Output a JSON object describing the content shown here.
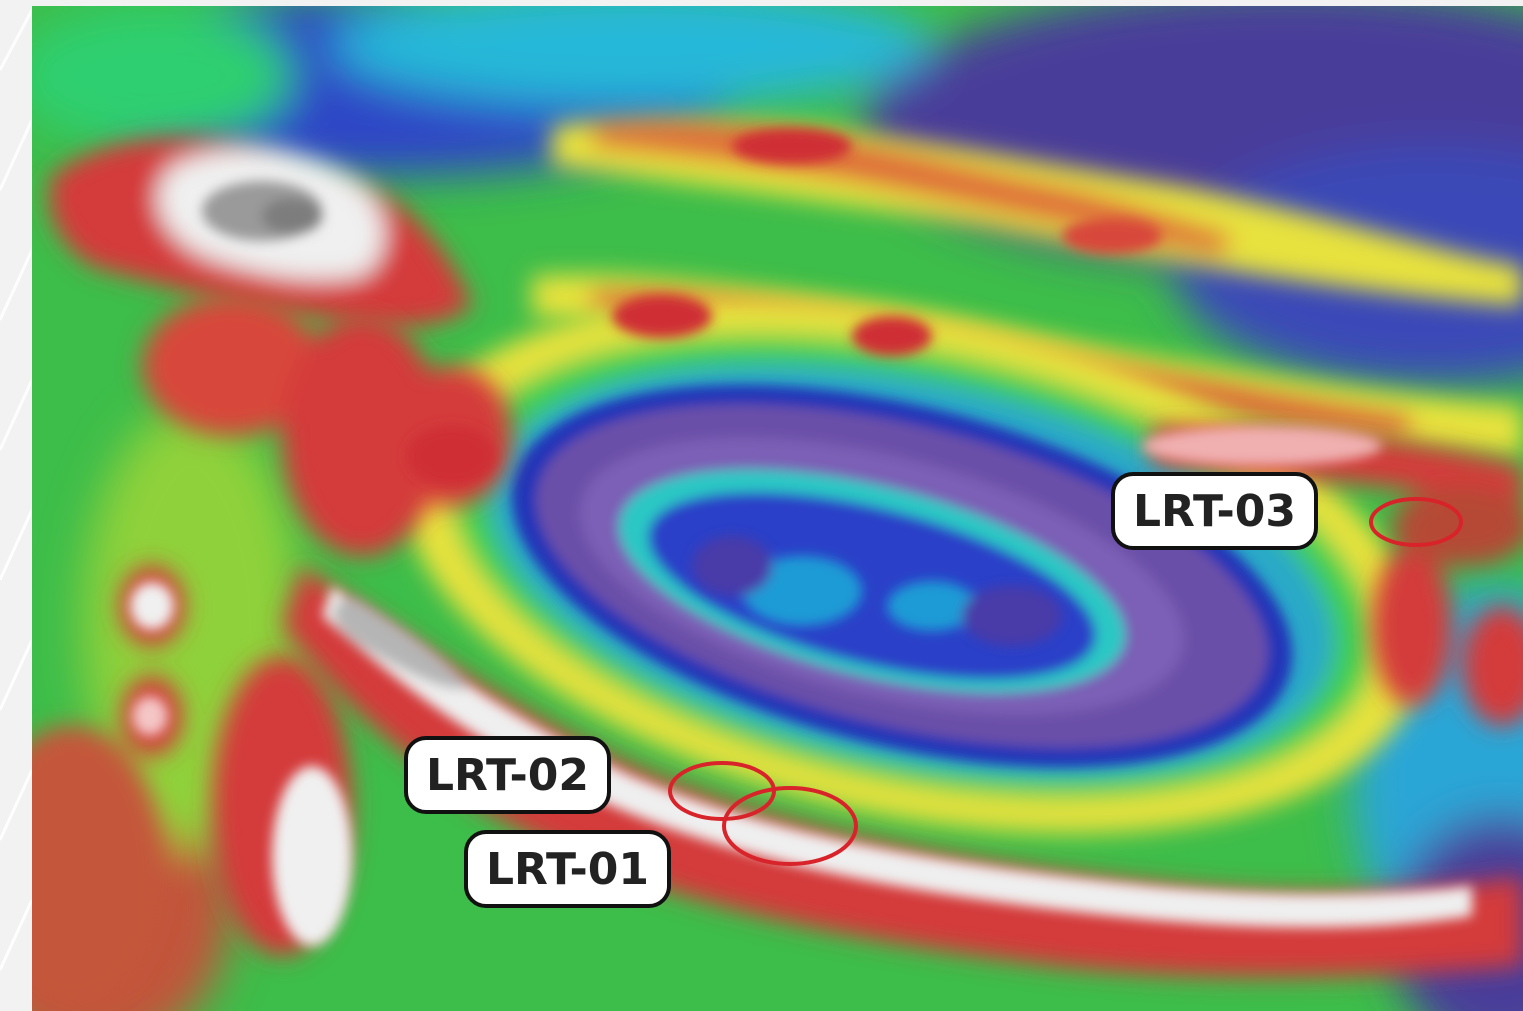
{
  "markers": [
    {
      "id": "LRT-03",
      "label": "LRT-03"
    },
    {
      "id": "LRT-02",
      "label": "LRT-02"
    },
    {
      "id": "LRT-01",
      "label": "LRT-01"
    }
  ],
  "colors": {
    "marker_ring": "#d8232a",
    "label_bg": "#ffffff",
    "label_border": "#111111",
    "label_text": "#222222",
    "page_bg": "#f2f2f2"
  },
  "layer": {
    "type": "magnetic-anomaly-heatmap",
    "palette": [
      "#3a2a8a",
      "#2d3fc4",
      "#1fb3d6",
      "#2fcf4f",
      "#e7e23c",
      "#e06a3a",
      "#cf2e35",
      "#f3f3f3"
    ]
  }
}
